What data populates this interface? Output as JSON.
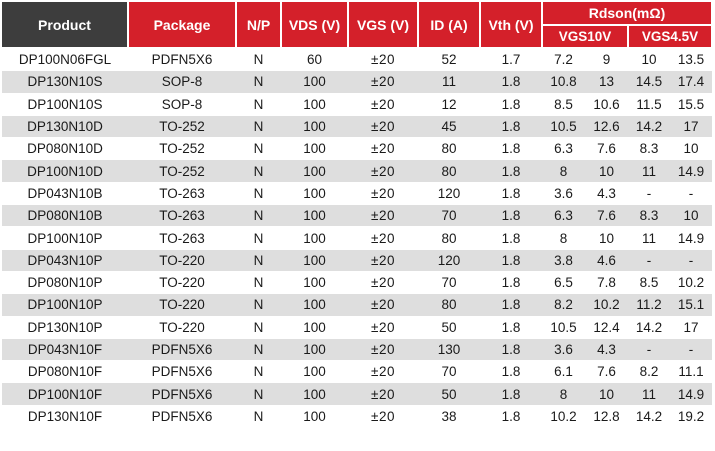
{
  "headers": {
    "product": "Product",
    "package": "Package",
    "np": "N/P",
    "vds": "VDS (V)",
    "vgs": "VGS (V)",
    "id": "ID (A)",
    "vth": "Vth (V)",
    "rdson": "Rdson(mΩ)",
    "vgs10": "VGS10V",
    "vgs45": "VGS4.5V"
  },
  "colors": {
    "header_dark": "#3d3d3d",
    "header_red": "#d4202a",
    "row_shade": "#dedede"
  },
  "rows": [
    {
      "product": "DP100N06FGL",
      "package": "PDFN5X6",
      "np": "N",
      "vds": "60",
      "vgs": "±20",
      "id": "52",
      "vth": "1.7",
      "r10a": "7.2",
      "r10b": "9",
      "r45a": "10",
      "r45b": "13.5"
    },
    {
      "product": "DP130N10S",
      "package": "SOP-8",
      "np": "N",
      "vds": "100",
      "vgs": "±20",
      "id": "11",
      "vth": "1.8",
      "r10a": "10.8",
      "r10b": "13",
      "r45a": "14.5",
      "r45b": "17.4"
    },
    {
      "product": "DP100N10S",
      "package": "SOP-8",
      "np": "N",
      "vds": "100",
      "vgs": "±20",
      "id": "12",
      "vth": "1.8",
      "r10a": "8.5",
      "r10b": "10.6",
      "r45a": "11.5",
      "r45b": "15.5"
    },
    {
      "product": "DP130N10D",
      "package": "TO-252",
      "np": "N",
      "vds": "100",
      "vgs": "±20",
      "id": "45",
      "vth": "1.8",
      "r10a": "10.5",
      "r10b": "12.6",
      "r45a": "14.2",
      "r45b": "17"
    },
    {
      "product": "DP080N10D",
      "package": "TO-252",
      "np": "N",
      "vds": "100",
      "vgs": "±20",
      "id": "80",
      "vth": "1.8",
      "r10a": "6.3",
      "r10b": "7.6",
      "r45a": "8.3",
      "r45b": "10"
    },
    {
      "product": "DP100N10D",
      "package": "TO-252",
      "np": "N",
      "vds": "100",
      "vgs": "±20",
      "id": "80",
      "vth": "1.8",
      "r10a": "8",
      "r10b": "10",
      "r45a": "11",
      "r45b": "14.9"
    },
    {
      "product": "DP043N10B",
      "package": "TO-263",
      "np": "N",
      "vds": "100",
      "vgs": "±20",
      "id": "120",
      "vth": "1.8",
      "r10a": "3.6",
      "r10b": "4.3",
      "r45a": "-",
      "r45b": "-"
    },
    {
      "product": "DP080N10B",
      "package": "TO-263",
      "np": "N",
      "vds": "100",
      "vgs": "±20",
      "id": "70",
      "vth": "1.8",
      "r10a": "6.3",
      "r10b": "7.6",
      "r45a": "8.3",
      "r45b": "10"
    },
    {
      "product": "DP100N10P",
      "package": "TO-263",
      "np": "N",
      "vds": "100",
      "vgs": "±20",
      "id": "80",
      "vth": "1.8",
      "r10a": "8",
      "r10b": "10",
      "r45a": "11",
      "r45b": "14.9"
    },
    {
      "product": "DP043N10P",
      "package": "TO-220",
      "np": "N",
      "vds": "100",
      "vgs": "±20",
      "id": "120",
      "vth": "1.8",
      "r10a": "3.8",
      "r10b": "4.6",
      "r45a": "-",
      "r45b": "-"
    },
    {
      "product": "DP080N10P",
      "package": "TO-220",
      "np": "N",
      "vds": "100",
      "vgs": "±20",
      "id": "70",
      "vth": "1.8",
      "r10a": "6.5",
      "r10b": "7.8",
      "r45a": "8.5",
      "r45b": "10.2"
    },
    {
      "product": "DP100N10P",
      "package": "TO-220",
      "np": "N",
      "vds": "100",
      "vgs": "±20",
      "id": "80",
      "vth": "1.8",
      "r10a": "8.2",
      "r10b": "10.2",
      "r45a": "11.2",
      "r45b": "15.1"
    },
    {
      "product": "DP130N10P",
      "package": "TO-220",
      "np": "N",
      "vds": "100",
      "vgs": "±20",
      "id": "50",
      "vth": "1.8",
      "r10a": "10.5",
      "r10b": "12.4",
      "r45a": "14.2",
      "r45b": "17"
    },
    {
      "product": "DP043N10F",
      "package": "PDFN5X6",
      "np": "N",
      "vds": "100",
      "vgs": "±20",
      "id": "130",
      "vth": "1.8",
      "r10a": "3.6",
      "r10b": "4.3",
      "r45a": "-",
      "r45b": "-"
    },
    {
      "product": "DP080N10F",
      "package": "PDFN5X6",
      "np": "N",
      "vds": "100",
      "vgs": "±20",
      "id": "70",
      "vth": "1.8",
      "r10a": "6.1",
      "r10b": "7.6",
      "r45a": "8.2",
      "r45b": "11.1"
    },
    {
      "product": "DP100N10F",
      "package": "PDFN5X6",
      "np": "N",
      "vds": "100",
      "vgs": "±20",
      "id": "50",
      "vth": "1.8",
      "r10a": "8",
      "r10b": "10",
      "r45a": "11",
      "r45b": "14.9"
    },
    {
      "product": "DP130N10F",
      "package": "PDFN5X6",
      "np": "N",
      "vds": "100",
      "vgs": "±20",
      "id": "38",
      "vth": "1.8",
      "r10a": "10.2",
      "r10b": "12.8",
      "r45a": "14.2",
      "r45b": "19.2"
    }
  ]
}
